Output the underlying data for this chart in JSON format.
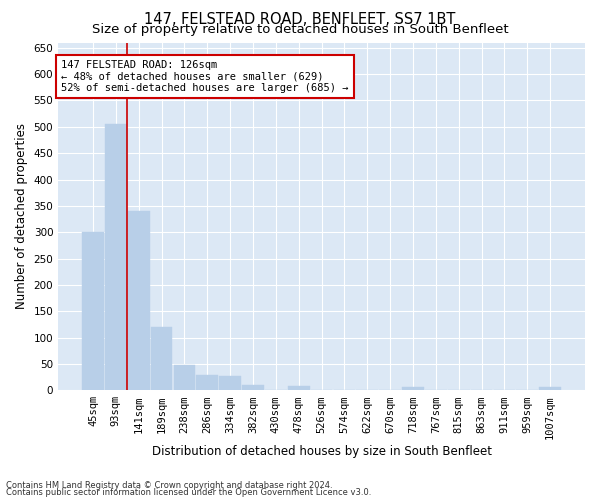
{
  "title": "147, FELSTEAD ROAD, BENFLEET, SS7 1BT",
  "subtitle": "Size of property relative to detached houses in South Benfleet",
  "xlabel": "Distribution of detached houses by size in South Benfleet",
  "ylabel": "Number of detached properties",
  "footnote1": "Contains HM Land Registry data © Crown copyright and database right 2024.",
  "footnote2": "Contains public sector information licensed under the Open Government Licence v3.0.",
  "bin_labels": [
    "45sqm",
    "93sqm",
    "141sqm",
    "189sqm",
    "238sqm",
    "286sqm",
    "334sqm",
    "382sqm",
    "430sqm",
    "478sqm",
    "526sqm",
    "574sqm",
    "622sqm",
    "670sqm",
    "718sqm",
    "767sqm",
    "815sqm",
    "863sqm",
    "911sqm",
    "959sqm",
    "1007sqm"
  ],
  "bin_values": [
    300,
    505,
    340,
    120,
    48,
    30,
    28,
    10,
    0,
    8,
    0,
    0,
    0,
    0,
    7,
    0,
    0,
    0,
    0,
    0,
    7
  ],
  "bar_color": "#b8cfe8",
  "bar_edgecolor": "#b8cfe8",
  "bg_color": "#dce8f5",
  "grid_color": "#ffffff",
  "vline_x": 1.5,
  "vline_color": "#cc0000",
  "annotation_line1": "147 FELSTEAD ROAD: 126sqm",
  "annotation_line2": "← 48% of detached houses are smaller (629)",
  "annotation_line3": "52% of semi-detached houses are larger (685) →",
  "annotation_box_edgecolor": "#cc0000",
  "annotation_box_facecolor": "#ffffff",
  "ylim": [
    0,
    660
  ],
  "yticks": [
    0,
    50,
    100,
    150,
    200,
    250,
    300,
    350,
    400,
    450,
    500,
    550,
    600,
    650
  ],
  "title_fontsize": 10.5,
  "subtitle_fontsize": 9.5,
  "axis_label_fontsize": 8.5,
  "tick_fontsize": 7.5,
  "annot_fontsize": 7.5,
  "footnote_fontsize": 6.0
}
